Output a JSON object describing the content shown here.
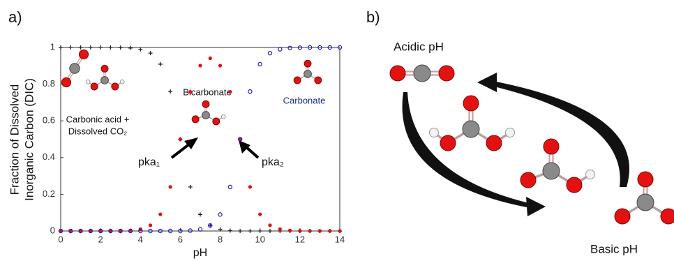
{
  "panel_a": {
    "label": "a)"
  },
  "panel_b": {
    "label": "b)",
    "acidic": "Acidic pH",
    "basic": "Basic pH"
  },
  "chart_data": {
    "type": "scatter",
    "xlabel": "pH",
    "ylabel": [
      "Fraction of Dissolved",
      "Inorganic Carbon (DIC)"
    ],
    "annotations": {
      "carbonic_1": "Carbonic acid +",
      "carbonic_2": "Dissolved CO₂",
      "bicarbonate": "Bicarbonate",
      "carbonate": "Carbonate",
      "pka1": "pka₁",
      "pka2": "pka₂"
    },
    "x": [
      0,
      0.5,
      1,
      1.5,
      2,
      2.5,
      3,
      3.5,
      4,
      4.5,
      5,
      5.5,
      6,
      6.5,
      7,
      7.5,
      8,
      8.5,
      9,
      9.5,
      10,
      10.5,
      11,
      11.5,
      12,
      12.5,
      13,
      13.5,
      14
    ],
    "series": [
      {
        "color": "#222222",
        "marker": "plus",
        "values": [
          1,
          1,
          1,
          1,
          1,
          1,
          0.999,
          0.997,
          0.99,
          0.969,
          0.909,
          0.76,
          0.5,
          0.24,
          0.09,
          0.03,
          0.009,
          0.002,
          0,
          0,
          0,
          0,
          0,
          0,
          0,
          0,
          0,
          0,
          0
        ]
      },
      {
        "color": "#dd1111",
        "marker": "dot",
        "values": [
          0,
          0,
          0,
          0,
          0,
          0,
          0.001,
          0.003,
          0.01,
          0.031,
          0.091,
          0.24,
          0.5,
          0.758,
          0.901,
          0.941,
          0.901,
          0.758,
          0.5,
          0.24,
          0.091,
          0.031,
          0.01,
          0.003,
          0.001,
          0,
          0,
          0,
          0
        ]
      },
      {
        "color": "#1a1acc",
        "marker": "circle",
        "values": [
          0,
          0,
          0,
          0,
          0,
          0,
          0,
          0,
          0,
          0,
          0,
          0,
          0,
          0.002,
          0.009,
          0.03,
          0.09,
          0.24,
          0.5,
          0.76,
          0.909,
          0.969,
          0.99,
          0.997,
          0.999,
          1,
          1,
          1,
          1
        ]
      }
    ],
    "xlim": [
      0,
      14
    ],
    "xticks": [
      0,
      2,
      4,
      6,
      8,
      10,
      12,
      14
    ],
    "ylim": [
      0,
      1
    ],
    "yticks": [
      0,
      0.2,
      0.4,
      0.6,
      0.8,
      1
    ]
  }
}
